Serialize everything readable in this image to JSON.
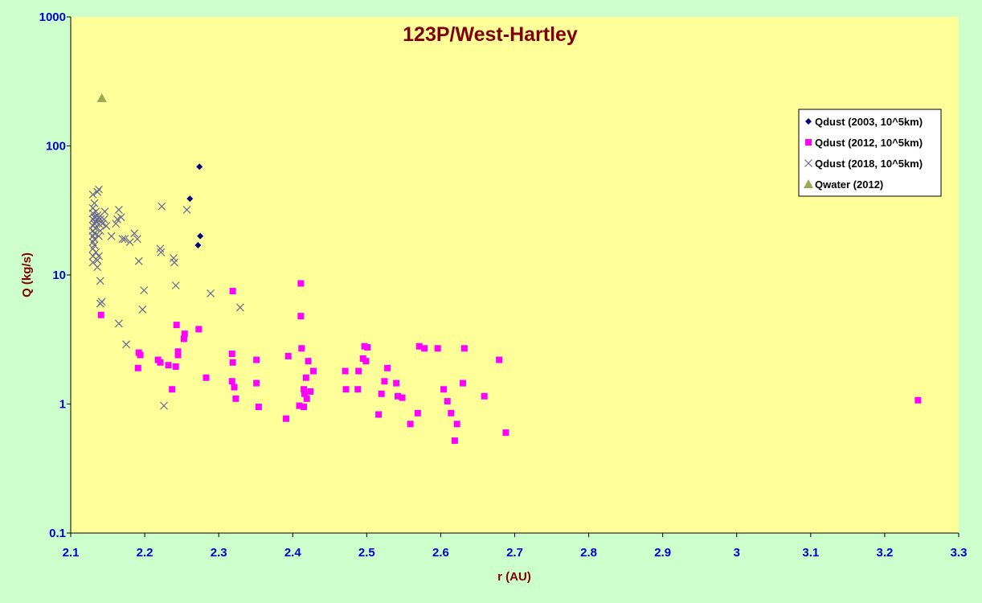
{
  "chart_data": {
    "type": "scatter",
    "title": "123P/West-Hartley",
    "xlabel": "r (AU)",
    "ylabel": "Q (kg/s)",
    "xlim": [
      2.1,
      3.3
    ],
    "ylim": [
      0.1,
      1000
    ],
    "yscale": "log",
    "xticks": [
      "2.1",
      "2.2",
      "2.3",
      "2.4",
      "2.5",
      "2.6",
      "2.7",
      "2.8",
      "2.9",
      "3",
      "3.1",
      "3.2",
      "3.3"
    ],
    "yticks": [
      "0.1",
      "1",
      "10",
      "100",
      "1000"
    ],
    "grid": false,
    "legend_position": "right",
    "background_color": "#ffff99",
    "page_color": "#ccffcc",
    "series": [
      {
        "name": "Qdust (2003, 10^5km)",
        "marker": "diamond",
        "color": "#000080",
        "points": [
          [
            2.261,
            39
          ],
          [
            2.274,
            69
          ],
          [
            2.275,
            20
          ],
          [
            2.272,
            17
          ]
        ]
      },
      {
        "name": "Qdust (2012, 10^5km)",
        "marker": "square",
        "color": "#ff00ff",
        "points": [
          [
            2.141,
            4.9
          ],
          [
            2.191,
            1.9
          ],
          [
            2.192,
            2.5
          ],
          [
            2.194,
            2.4
          ],
          [
            2.218,
            2.2
          ],
          [
            2.221,
            2.1
          ],
          [
            2.232,
            2.0
          ],
          [
            2.237,
            1.3
          ],
          [
            2.242,
            1.95
          ],
          [
            2.243,
            4.1
          ],
          [
            2.245,
            2.4
          ],
          [
            2.245,
            2.55
          ],
          [
            2.253,
            3.2
          ],
          [
            2.254,
            3.5
          ],
          [
            2.273,
            3.8
          ],
          [
            2.283,
            1.6
          ],
          [
            2.318,
            2.45
          ],
          [
            2.318,
            1.5
          ],
          [
            2.319,
            7.5
          ],
          [
            2.319,
            2.1
          ],
          [
            2.321,
            1.35
          ],
          [
            2.323,
            1.1
          ],
          [
            2.351,
            2.2
          ],
          [
            2.351,
            1.45
          ],
          [
            2.354,
            0.95
          ],
          [
            2.391,
            0.77
          ],
          [
            2.394,
            2.35
          ],
          [
            2.409,
            0.97
          ],
          [
            2.411,
            8.6
          ],
          [
            2.411,
            4.8
          ],
          [
            2.412,
            2.7
          ],
          [
            2.415,
            1.3
          ],
          [
            2.415,
            0.95
          ],
          [
            2.416,
            1.2
          ],
          [
            2.418,
            1.6
          ],
          [
            2.419,
            1.1
          ],
          [
            2.421,
            2.15
          ],
          [
            2.424,
            1.25
          ],
          [
            2.428,
            1.8
          ],
          [
            2.471,
            1.8
          ],
          [
            2.472,
            1.3
          ],
          [
            2.489,
            1.8
          ],
          [
            2.488,
            1.3
          ],
          [
            2.495,
            2.25
          ],
          [
            2.497,
            2.8
          ],
          [
            2.499,
            2.15
          ],
          [
            2.501,
            2.75
          ],
          [
            2.516,
            0.83
          ],
          [
            2.52,
            1.2
          ],
          [
            2.524,
            1.5
          ],
          [
            2.528,
            1.9
          ],
          [
            2.54,
            1.45
          ],
          [
            2.542,
            1.15
          ],
          [
            2.548,
            1.12
          ],
          [
            2.559,
            0.7
          ],
          [
            2.569,
            0.85
          ],
          [
            2.571,
            2.8
          ],
          [
            2.578,
            2.7
          ],
          [
            2.596,
            2.7
          ],
          [
            2.604,
            1.3
          ],
          [
            2.609,
            1.05
          ],
          [
            2.614,
            0.85
          ],
          [
            2.619,
            0.52
          ],
          [
            2.622,
            0.7
          ],
          [
            2.63,
            1.45
          ],
          [
            2.632,
            2.7
          ],
          [
            2.659,
            1.15
          ],
          [
            2.679,
            2.2
          ],
          [
            2.688,
            0.6
          ],
          [
            3.245,
            1.07
          ]
        ]
      },
      {
        "name": "Qdust (2018, 10^5km)",
        "marker": "x",
        "color": "#666699",
        "points": [
          [
            2.13,
            42
          ],
          [
            2.13,
            33
          ],
          [
            2.13,
            30
          ],
          [
            2.13,
            27
          ],
          [
            2.13,
            24
          ],
          [
            2.13,
            22
          ],
          [
            2.13,
            20
          ],
          [
            2.13,
            18
          ],
          [
            2.13,
            16
          ],
          [
            2.13,
            14
          ],
          [
            2.13,
            12.5
          ],
          [
            2.132,
            36
          ],
          [
            2.132,
            28
          ],
          [
            2.132,
            25
          ],
          [
            2.132,
            21
          ],
          [
            2.132,
            19
          ],
          [
            2.132,
            17
          ],
          [
            2.134,
            31
          ],
          [
            2.134,
            26
          ],
          [
            2.134,
            23
          ],
          [
            2.134,
            15
          ],
          [
            2.136,
            44
          ],
          [
            2.136,
            29
          ],
          [
            2.136,
            27
          ],
          [
            2.136,
            13
          ],
          [
            2.136,
            11.5
          ],
          [
            2.138,
            46
          ],
          [
            2.138,
            28
          ],
          [
            2.138,
            25
          ],
          [
            2.138,
            20
          ],
          [
            2.138,
            14
          ],
          [
            2.14,
            27
          ],
          [
            2.14,
            22
          ],
          [
            2.14,
            9
          ],
          [
            2.142,
            6.2
          ],
          [
            2.14,
            6.0
          ],
          [
            2.143,
            25
          ],
          [
            2.145,
            27
          ],
          [
            2.146,
            31
          ],
          [
            2.148,
            24
          ],
          [
            2.155,
            20
          ],
          [
            2.161,
            25
          ],
          [
            2.163,
            27
          ],
          [
            2.165,
            32
          ],
          [
            2.168,
            28
          ],
          [
            2.17,
            19
          ],
          [
            2.173,
            19
          ],
          [
            2.18,
            18
          ],
          [
            2.186,
            21
          ],
          [
            2.19,
            19
          ],
          [
            2.192,
            12.8
          ],
          [
            2.197,
            5.4
          ],
          [
            2.199,
            7.6
          ],
          [
            2.165,
            4.2
          ],
          [
            2.175,
            2.9
          ],
          [
            2.221,
            16
          ],
          [
            2.222,
            15
          ],
          [
            2.223,
            34
          ],
          [
            2.226,
            0.97
          ],
          [
            2.239,
            13.5
          ],
          [
            2.24,
            12.5
          ],
          [
            2.242,
            8.3
          ],
          [
            2.257,
            32
          ],
          [
            2.289,
            7.2
          ],
          [
            2.329,
            5.6
          ]
        ]
      },
      {
        "name": "Qwater (2012)",
        "marker": "triangle",
        "color": "#99aa55",
        "points": [
          [
            2.142,
            235
          ]
        ]
      }
    ]
  }
}
